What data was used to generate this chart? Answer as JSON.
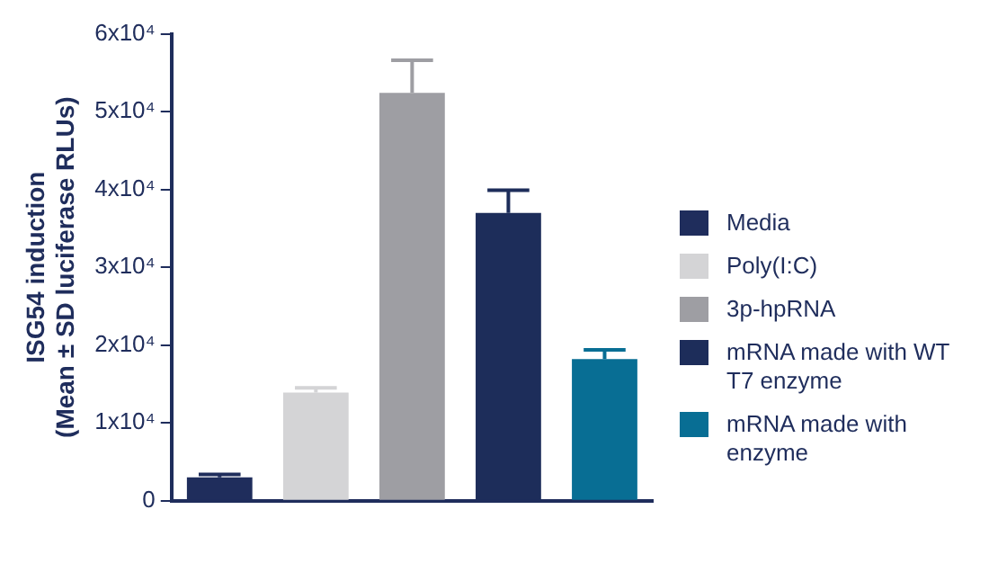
{
  "chart_data": {
    "type": "bar",
    "ylabel": "ISG54 induction\n(Mean ± SD luciferase RLUs)",
    "categories": [
      null,
      null,
      null,
      null,
      null
    ],
    "series": [
      {
        "name": "Media",
        "color": "#1f2d5c",
        "values": [
          3000,
          null,
          null,
          null,
          null
        ],
        "errors": [
          400,
          null,
          null,
          null,
          null
        ]
      },
      {
        "name": "Poly(I:C)",
        "color": "#d4d4d6",
        "values": [
          null,
          13900,
          null,
          null,
          null
        ],
        "errors": [
          null,
          600,
          null,
          null,
          null
        ]
      },
      {
        "name": "3p-hpRNA",
        "color": "#9e9ea3",
        "values": [
          null,
          null,
          52400,
          null,
          null
        ],
        "errors": [
          null,
          null,
          4200,
          null,
          null
        ]
      },
      {
        "name": "mRNA made with WT T7 enzyme",
        "color": "#1d2d5a",
        "values": [
          null,
          null,
          null,
          37000,
          null
        ],
        "errors": [
          null,
          null,
          null,
          2900,
          null
        ]
      },
      {
        "name": "mRNA made with enzyme",
        "color": "#086e94",
        "values": [
          null,
          null,
          null,
          null,
          18200
        ],
        "errors": [
          null,
          null,
          null,
          null,
          1200
        ]
      }
    ],
    "ylim": [
      0,
      60000
    ],
    "yticks": [
      0,
      {
        "value": 10000,
        "label": "1x10⁴"
      },
      {
        "value": 20000,
        "label": "2x10⁴"
      },
      {
        "value": 30000,
        "label": "3x10⁴"
      },
      {
        "value": 40000,
        "label": "4x10⁴"
      },
      {
        "value": 50000,
        "label": "5x10⁴"
      },
      {
        "value": 60000,
        "label": "6x10⁴"
      }
    ],
    "grid": false,
    "legend": "right"
  }
}
